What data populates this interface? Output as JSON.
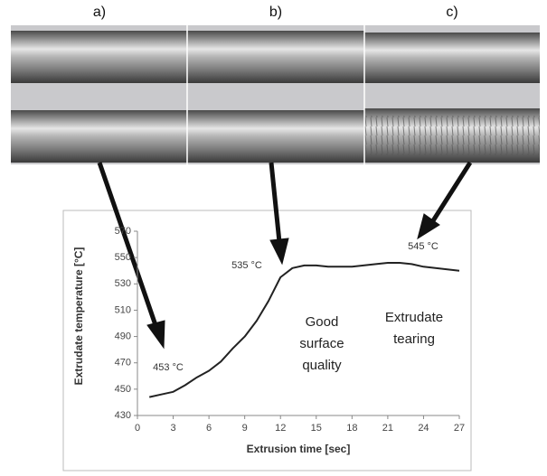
{
  "panels": [
    "a)",
    "b)",
    "c)"
  ],
  "chart_data": {
    "type": "line",
    "x_label": "Extrusion time [sec]",
    "y_label": "Extrudate  temperature  [°C]",
    "x": [
      1,
      2,
      3,
      4,
      5,
      6,
      7,
      8,
      9,
      10,
      11,
      12,
      13,
      14,
      15,
      16,
      18,
      20,
      21,
      22,
      23,
      24,
      26,
      27
    ],
    "values": [
      444,
      446,
      448,
      453,
      459,
      464,
      471,
      481,
      490,
      502,
      517,
      535,
      542,
      544,
      544,
      543,
      543,
      545,
      546,
      546,
      545,
      543,
      541,
      540
    ],
    "color": "#222222",
    "xlim": [
      0,
      27
    ],
    "xticks": [
      0,
      3,
      6,
      9,
      12,
      15,
      18,
      21,
      24,
      27
    ],
    "ylim": [
      430,
      570
    ],
    "yticks": [
      430,
      450,
      470,
      490,
      510,
      530,
      550,
      570
    ],
    "annotations": [
      {
        "lines": [
          "453 °C"
        ]
      },
      {
        "lines": [
          "535 °C"
        ]
      },
      {
        "lines": [
          "545 °C"
        ]
      },
      {
        "lines": [
          "Good",
          "surface",
          "quality"
        ]
      },
      {
        "lines": [
          "Extrudate",
          "tearing"
        ]
      }
    ]
  }
}
